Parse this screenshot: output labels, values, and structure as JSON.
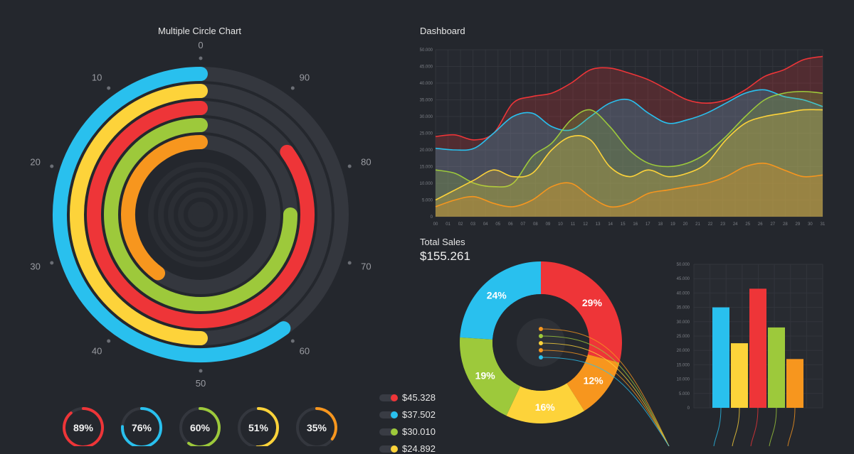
{
  "titles": {
    "circle": "Multiple Circle Chart",
    "dashboard": "Dashboard",
    "total_sales": "Total Sales",
    "total_sales_value": "$155.261"
  },
  "colors": {
    "background": "#24272d",
    "track": "#34373e",
    "blue": "#29c0ee",
    "yellow": "#fdd33a",
    "red": "#ee3538",
    "green": "#9dc93b",
    "orange": "#f7961e"
  },
  "chart_data": [
    {
      "type": "radial-bar",
      "title": "Multiple Circle Chart",
      "tick_labels": [
        "0",
        "90",
        "80",
        "70",
        "60",
        "50",
        "40",
        "30",
        "20",
        "10"
      ],
      "series": [
        {
          "color": "blue",
          "value": 60
        },
        {
          "color": "yellow",
          "value": 50
        },
        {
          "color": "red",
          "value": 85
        },
        {
          "color": "green",
          "value": 75
        },
        {
          "color": "orange",
          "value": 40
        }
      ]
    },
    {
      "type": "area",
      "title": "Dashboard",
      "x_ticks": [
        "00",
        "01",
        "02",
        "03",
        "04",
        "05",
        "06",
        "07",
        "08",
        "09",
        "10",
        "11",
        "12",
        "13",
        "14",
        "15",
        "16",
        "17",
        "18",
        "19",
        "20",
        "21",
        "22",
        "23",
        "24",
        "25",
        "26",
        "27",
        "28",
        "29",
        "30",
        "31"
      ],
      "y_ticks": [
        "0",
        "5.000",
        "10.000",
        "15.000",
        "20.000",
        "25.000",
        "30.000",
        "35.000",
        "40.000",
        "45.000",
        "50.000"
      ],
      "ylim": [
        0,
        50000
      ],
      "series": [
        {
          "color": "red",
          "values": [
            24000,
            24500,
            23000,
            25000,
            34000,
            36000,
            37000,
            40000,
            44000,
            44500,
            43000,
            41000,
            38000,
            35000,
            34000,
            35000,
            38000,
            42000,
            44000,
            47000,
            48000
          ]
        },
        {
          "color": "blue",
          "values": [
            20500,
            20000,
            20500,
            25000,
            30000,
            31000,
            27000,
            26000,
            30000,
            34000,
            35000,
            31000,
            28000,
            29000,
            31000,
            34000,
            37000,
            38000,
            36000,
            35000,
            33000
          ]
        },
        {
          "color": "green",
          "values": [
            14000,
            13000,
            10000,
            9000,
            10000,
            18000,
            22000,
            29000,
            32000,
            27000,
            20000,
            16000,
            15000,
            16000,
            19000,
            24000,
            30000,
            35000,
            37000,
            37500,
            37000
          ]
        },
        {
          "color": "yellow",
          "values": [
            5000,
            8000,
            11000,
            14000,
            12000,
            13000,
            20000,
            24000,
            23000,
            15000,
            12000,
            14000,
            12000,
            13000,
            16000,
            23000,
            28000,
            30000,
            31000,
            32000,
            32000
          ]
        },
        {
          "color": "orange",
          "values": [
            3000,
            5000,
            6000,
            4000,
            3000,
            5000,
            9000,
            10000,
            6000,
            3000,
            4000,
            7000,
            8000,
            9000,
            10000,
            12000,
            15000,
            16000,
            14000,
            12000,
            12500
          ]
        }
      ]
    },
    {
      "type": "pie",
      "title": "Total Sales",
      "slices": [
        {
          "color": "red",
          "value": 29,
          "label": "29%"
        },
        {
          "color": "orange",
          "value": 12,
          "label": "12%"
        },
        {
          "color": "yellow",
          "value": 16,
          "label": "16%"
        },
        {
          "color": "green",
          "value": 19,
          "label": "19%"
        },
        {
          "color": "blue",
          "value": 24,
          "label": "24%"
        }
      ]
    },
    {
      "type": "bar",
      "y_ticks": [
        "0",
        "5.000",
        "10.000",
        "15.000",
        "20.000",
        "25.000",
        "30.000",
        "35.000",
        "40.000",
        "45.000",
        "50.000"
      ],
      "ylim": [
        0,
        50000
      ],
      "bars": [
        {
          "color": "blue",
          "value": 35000
        },
        {
          "color": "yellow",
          "value": 22500
        },
        {
          "color": "red",
          "value": 41500
        },
        {
          "color": "green",
          "value": 28000
        },
        {
          "color": "orange",
          "value": 17000
        }
      ]
    },
    {
      "type": "gauge",
      "gauges": [
        {
          "color": "red",
          "value": 89,
          "label": "89%"
        },
        {
          "color": "blue",
          "value": 76,
          "label": "76%"
        },
        {
          "color": "green",
          "value": 60,
          "label": "60%"
        },
        {
          "color": "yellow",
          "value": 51,
          "label": "51%"
        },
        {
          "color": "orange",
          "value": 35,
          "label": "35%"
        }
      ]
    }
  ],
  "legend": [
    {
      "color": "red",
      "value": "$45.328"
    },
    {
      "color": "blue",
      "value": "$37.502"
    },
    {
      "color": "green",
      "value": "$30.010"
    },
    {
      "color": "yellow",
      "value": "$24.892"
    }
  ]
}
